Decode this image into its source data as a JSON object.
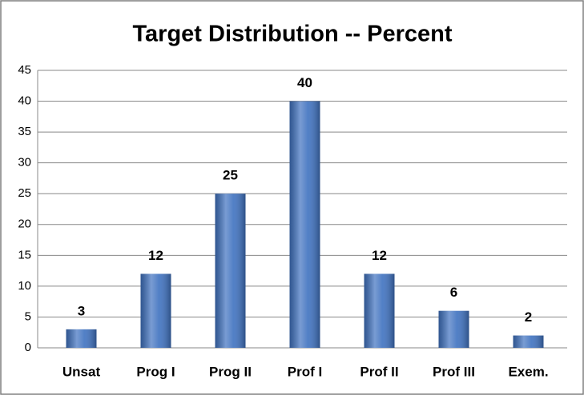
{
  "chart_data": {
    "type": "bar",
    "title": "Target Distribution -- Percent",
    "categories": [
      "Unsat",
      "Prog I",
      "Prog II",
      "Prof I",
      "Prof II",
      "Prof III",
      "Exem."
    ],
    "values": [
      3,
      12,
      25,
      40,
      12,
      6,
      2
    ],
    "color": "#3f72c0",
    "ylim": [
      0,
      45
    ],
    "yticks": [
      0,
      5,
      10,
      15,
      20,
      25,
      30,
      35,
      40,
      45
    ],
    "grid": true
  }
}
